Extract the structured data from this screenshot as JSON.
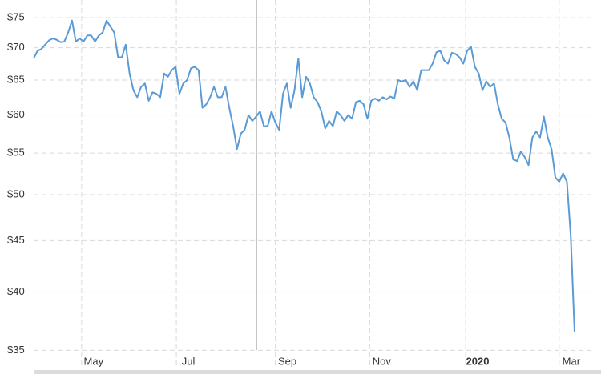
{
  "chart_data": {
    "type": "line",
    "log_y": true,
    "grid": true,
    "color": "#5b9bd5",
    "xlim": [
      0,
      141
    ],
    "xticks": [
      {
        "value": 12.5,
        "label": "May"
      },
      {
        "value": 37.2,
        "label": "Jul"
      },
      {
        "value": 63,
        "label": "Sep"
      },
      {
        "value": 87.6,
        "label": "Nov"
      },
      {
        "value": 112.6,
        "label": "2020"
      },
      {
        "value": 137,
        "label": "Mar"
      }
    ],
    "ylim": [
      33.7,
      78.1
    ],
    "yticks": [
      {
        "value": 35,
        "label": "$35"
      },
      {
        "value": 40,
        "label": "$40"
      },
      {
        "value": 45,
        "label": "$45"
      },
      {
        "value": 50,
        "label": "$50"
      },
      {
        "value": 55,
        "label": "$55"
      },
      {
        "value": 60,
        "label": "$60"
      },
      {
        "value": 65,
        "label": "$65"
      },
      {
        "value": 70,
        "label": "$70"
      },
      {
        "value": 75,
        "label": "$75"
      }
    ],
    "values": [
      68.3,
      69.5,
      69.8,
      70.5,
      71.2,
      71.5,
      71.3,
      70.9,
      71.0,
      72.5,
      74.5,
      71,
      71.5,
      71,
      72,
      72,
      71,
      72,
      72.5,
      74.5,
      73.5,
      72.5,
      68.5,
      68.5,
      70.5,
      66,
      63.5,
      62.5,
      64,
      64.5,
      62,
      63.2,
      63,
      62.5,
      66,
      65.5,
      66.5,
      67,
      63,
      64.5,
      65,
      66.8,
      67,
      66.5,
      61,
      61.5,
      62.5,
      64,
      62.5,
      62.5,
      64,
      61,
      58.5,
      55.5,
      57.5,
      58,
      60,
      59.2,
      59.8,
      60.5,
      58.5,
      58.5,
      60.5,
      59,
      58,
      63,
      64.5,
      61,
      63.5,
      68.3,
      62.5,
      65.5,
      64.5,
      62.5,
      61.8,
      60.5,
      58.2,
      59.2,
      58.5,
      60.5,
      60,
      59.2,
      60,
      59.5,
      61.8,
      62,
      61.5,
      59.5,
      62,
      62.3,
      62,
      62.5,
      62.2,
      62.6,
      62.3,
      65,
      64.8,
      65,
      64,
      64.8,
      63.5,
      66.5,
      66.5,
      66.5,
      67.5,
      69.3,
      69.5,
      68,
      67.5,
      69.2,
      69,
      68.5,
      67.5,
      69.5,
      70.2,
      67,
      66,
      63.5,
      64.8,
      64,
      64.5,
      61.5,
      59.5,
      59,
      57,
      54.2,
      54,
      55.2,
      54.5,
      53.5,
      57,
      57.8,
      57,
      59.8,
      57,
      55.5,
      52,
      51.5,
      52.5,
      51.5,
      45.5,
      36.5
    ]
  }
}
